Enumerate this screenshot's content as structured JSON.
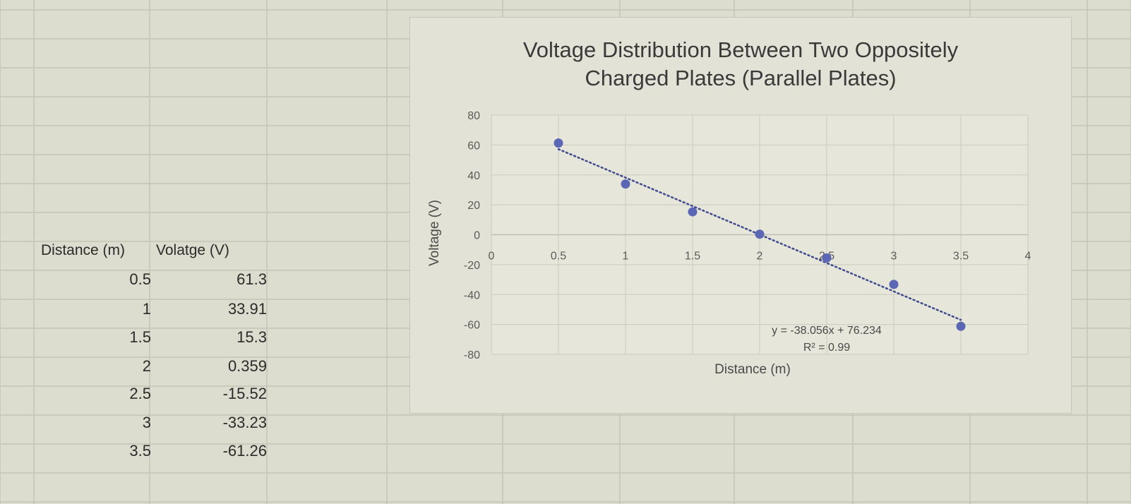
{
  "table": {
    "headers": [
      "Distance (m)",
      "Volatge (V)"
    ],
    "rows": [
      [
        "0.5",
        "61.3"
      ],
      [
        "1",
        "33.91"
      ],
      [
        "1.5",
        "15.3"
      ],
      [
        "2",
        "0.359"
      ],
      [
        "2.5",
        "-15.52"
      ],
      [
        "3",
        "-33.23"
      ],
      [
        "3.5",
        "-61.26"
      ]
    ]
  },
  "chart_data": {
    "type": "scatter",
    "title_line1": "Voltage Distribution Between Two Oppositely",
    "title_line2": "Charged Plates (Parallel Plates)",
    "xlabel": "Distance (m)",
    "ylabel": "Voltage (V)",
    "xlim": [
      0,
      4
    ],
    "ylim": [
      -80,
      80
    ],
    "x_ticks": [
      "0",
      "0.5",
      "1",
      "1.5",
      "2",
      "2.5",
      "3",
      "3.5",
      "4"
    ],
    "y_ticks": [
      "80",
      "60",
      "40",
      "20",
      "0",
      "-20",
      "-40",
      "-60",
      "-80"
    ],
    "grid": true,
    "series": [
      {
        "x": [
          0.5,
          1,
          1.5,
          2,
          2.5,
          3,
          3.5
        ],
        "y": [
          61.3,
          33.91,
          15.3,
          0.359,
          -15.52,
          -33.23,
          -61.26
        ],
        "color": "#5b67b5"
      }
    ],
    "trendline": {
      "slope": -38.056,
      "intercept": 76.234,
      "style": "dotted",
      "equation": "y = -38.056x + 76.234",
      "r2": "R² = 0.99"
    }
  }
}
